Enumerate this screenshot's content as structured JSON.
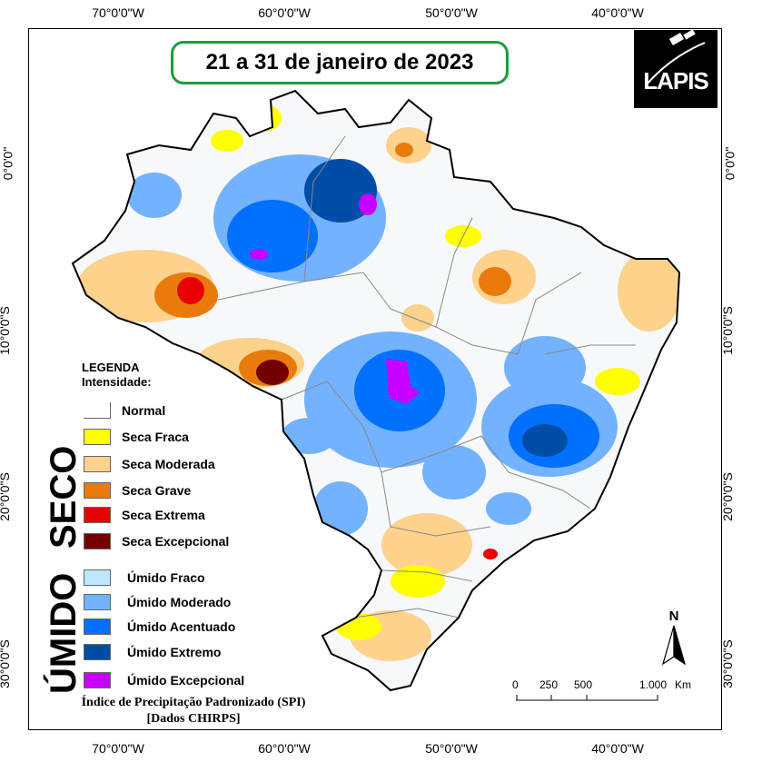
{
  "map": {
    "title": "21 a 31 de janeiro de 2023",
    "logo_text": "LAPIS",
    "coords_top": [
      "70°0'0\"W",
      "60°0'0\"W",
      "50°0'0\"W",
      "40°0'0\"W"
    ],
    "coords_bottom": [
      "70°0'0\"W",
      "60°0'0\"W",
      "50°0'0\"W",
      "40°0'0\"W"
    ],
    "coords_left": [
      "0°0'0\"",
      "10°0'0\"S",
      "20°0'0\"S",
      "30°0'0\"S"
    ],
    "coords_right": [
      "0°0'0\"",
      "10°0'0\"S",
      "20°0'0\"S",
      "30°0'0\"S"
    ]
  },
  "legend": {
    "heading": "LEGENDA",
    "subheading": "Intensidade:",
    "normal": {
      "label": "Normal",
      "color": "#ffffff"
    },
    "dry_label": "SECO",
    "wet_label": "ÚMIDO",
    "dry": [
      {
        "label": "Seca Fraca",
        "color": "#ffff00"
      },
      {
        "label": "Seca Moderada",
        "color": "#fcd28c"
      },
      {
        "label": "Seca Grave",
        "color": "#e87b0c"
      },
      {
        "label": "Seca Extrema",
        "color": "#e60000"
      },
      {
        "label": "Seca Excepcional",
        "color": "#730000"
      }
    ],
    "wet": [
      {
        "label": "Úmido Fraco",
        "color": "#bee8ff"
      },
      {
        "label": "Úmido Moderado",
        "color": "#73b2ff"
      },
      {
        "label": "Úmido Acentuado",
        "color": "#0070ff"
      },
      {
        "label": "Úmido Extremo",
        "color": "#004da8"
      },
      {
        "label": "Úmido Excepcional",
        "color": "#c500ff"
      }
    ]
  },
  "source": {
    "line1": "Índice de Precipitação Padronizado (SPI)",
    "line2": "[Dados CHIRPS]"
  },
  "scale": {
    "ticks": [
      "0",
      "250",
      "500",
      "1.000"
    ],
    "unit": "Km"
  },
  "north_label": "N"
}
